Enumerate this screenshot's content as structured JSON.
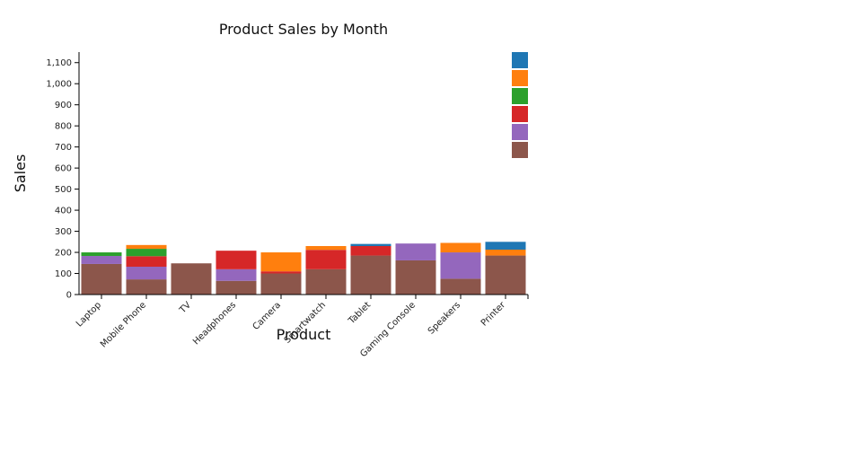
{
  "chart_data": {
    "type": "bar",
    "stacked": true,
    "title": "Product Sales by Month",
    "xlabel": "Product",
    "ylabel": "Sales",
    "ylim": [
      0,
      1150
    ],
    "yticks": [
      0,
      100,
      200,
      300,
      400,
      500,
      600,
      700,
      800,
      900,
      1000,
      1100
    ],
    "ytick_labels": [
      "0",
      "100",
      "200",
      "300",
      "400",
      "500",
      "600",
      "700",
      "800",
      "900",
      "1,000",
      "1,100"
    ],
    "grid": false,
    "legend_position": "top-right",
    "categories": [
      "Laptop",
      "Mobile Phone",
      "TV",
      "Headphones",
      "Camera",
      "Smartwatch",
      "Tablet",
      "Gaming Console",
      "Speakers",
      "Printer"
    ],
    "series": [
      {
        "color": "#8c564b",
        "values": [
          145,
          72,
          148,
          65,
          100,
          120,
          185,
          162,
          75,
          185
        ]
      },
      {
        "color": "#9467bd",
        "values": [
          38,
          60,
          0,
          55,
          0,
          0,
          0,
          80,
          125,
          0
        ]
      },
      {
        "color": "#d62728",
        "values": [
          0,
          50,
          0,
          88,
          10,
          92,
          45,
          0,
          0,
          0
        ]
      },
      {
        "color": "#2ca02c",
        "values": [
          17,
          35,
          0,
          0,
          0,
          0,
          0,
          0,
          0,
          0
        ]
      },
      {
        "color": "#ff7f0e",
        "values": [
          0,
          18,
          0,
          0,
          90,
          18,
          0,
          0,
          45,
          28
        ]
      },
      {
        "color": "#1f77b4",
        "values": [
          0,
          0,
          0,
          0,
          0,
          0,
          10,
          0,
          0,
          37
        ]
      }
    ],
    "legend_order": [
      "#1f77b4",
      "#ff7f0e",
      "#2ca02c",
      "#d62728",
      "#9467bd",
      "#8c564b"
    ]
  }
}
